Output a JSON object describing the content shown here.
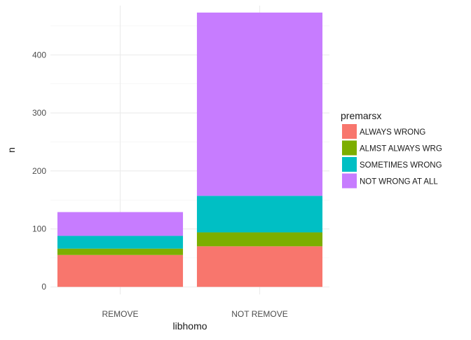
{
  "chart_data": {
    "type": "bar",
    "stacked": true,
    "title": "",
    "xlabel": "libhomo",
    "ylabel": "n",
    "categories": [
      "REMOVE",
      "NOT REMOVE"
    ],
    "ylim": [
      -13,
      485
    ],
    "yticks": [
      0,
      100,
      200,
      300,
      400
    ],
    "grid": true,
    "theme": "minimal",
    "legend": {
      "title": "premarsx",
      "position": "right"
    },
    "series": [
      {
        "name": "ALWAYS WRONG",
        "color": "#F8766D",
        "values": [
          55,
          70
        ]
      },
      {
        "name": "ALMST ALWAYS WRG",
        "color": "#7CAE00",
        "values": [
          11,
          24
        ]
      },
      {
        "name": "SOMETIMES WRONG",
        "color": "#00BFC4",
        "values": [
          22,
          63
        ]
      },
      {
        "name": "NOT WRONG AT ALL",
        "color": "#C77CFF",
        "values": [
          41,
          316
        ]
      }
    ]
  }
}
